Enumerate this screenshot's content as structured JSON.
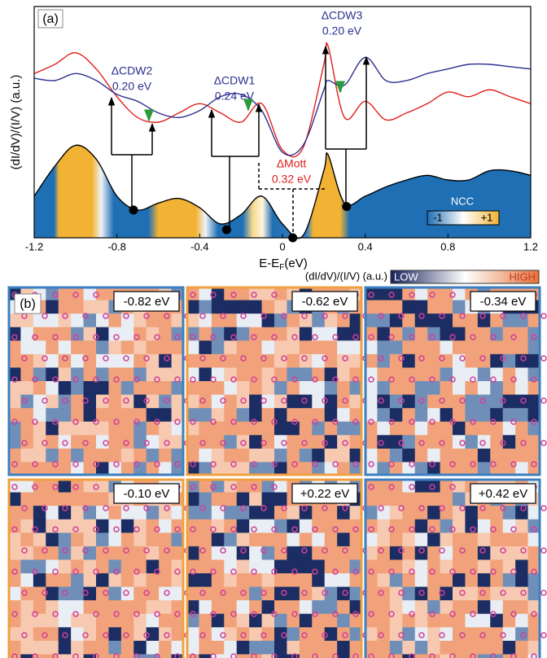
{
  "chart_data": {
    "type": "line",
    "panel_label": "(a)",
    "y_label": "(dI/dV)/(I/V) (a.u.)",
    "x_label": {
      "main": "E-E",
      "sub": "F",
      "unit": "(eV)"
    },
    "x": [
      -1.2,
      -1.1,
      -1.0,
      -0.9,
      -0.8,
      -0.7,
      -0.6,
      -0.5,
      -0.4,
      -0.3,
      -0.2,
      -0.1,
      0,
      0.1,
      0.2,
      0.22,
      0.3,
      0.4,
      0.5,
      0.6,
      0.7,
      0.8,
      0.9,
      1.0,
      1.1,
      1.2
    ],
    "series": [
      {
        "color": "#e0201b",
        "values": [
          7.1,
          7.5,
          8.0,
          7.3,
          6.1,
          5.2,
          5.0,
          5.4,
          5.8,
          5.4,
          5.0,
          5.8,
          3.8,
          3.9,
          7.5,
          8.3,
          5.2,
          5.9,
          5.1,
          5.4,
          5.8,
          6.3,
          6.1,
          6.4,
          6.1,
          5.8
        ]
      },
      {
        "color": "#2b2f8f",
        "values": [
          6.9,
          6.8,
          7.1,
          6.8,
          6.2,
          5.9,
          5.4,
          5.2,
          5.5,
          6.1,
          6.2,
          5.5,
          3.7,
          4.0,
          6.4,
          6.8,
          6.6,
          7.8,
          6.8,
          6.8,
          7.1,
          7.3,
          7.5,
          7.5,
          7.4,
          7.3
        ]
      },
      {
        "color": "#000000",
        "style": "area",
        "values": [
          1.8,
          3.1,
          4.0,
          3.4,
          1.8,
          1.2,
          1.5,
          1.7,
          1.3,
          0.6,
          1.0,
          1.8,
          0.6,
          0.1,
          2.9,
          3.6,
          1.5,
          1.8,
          2.2,
          2.5,
          2.7,
          2.5,
          2.5,
          2.9,
          2.9,
          2.7
        ]
      }
    ],
    "markers": {
      "x": [
        -0.72,
        -0.27,
        0.05,
        0.31
      ],
      "y": [
        1.2,
        0.35,
        0,
        1.35
      ]
    },
    "xlim": [
      -1.2,
      1.2
    ],
    "ylim": [
      0,
      10
    ],
    "xticks": [
      -1.2,
      -0.8,
      -0.4,
      0,
      0.4,
      0.8,
      1.2
    ],
    "annotations": [
      {
        "label": "ΔCDW2",
        "sub": "0.20 eV",
        "color": "#2b2f8f"
      },
      {
        "label": "ΔCDW1",
        "sub": "0.24 eV",
        "color": "#2b2f8f"
      },
      {
        "label": "ΔMott",
        "sub": "0.32 eV",
        "color": "#e0201b"
      },
      {
        "label": "ΔCDW3",
        "sub": "0.20 eV",
        "color": "#2b2f8f"
      }
    ],
    "colorbar": {
      "title": "NCC",
      "low": "-1",
      "high": "+1"
    }
  },
  "panel_b": {
    "panel_label": "(b)",
    "colorbar": {
      "title": "(dI/dV)/(I/V) (a.u.)",
      "low": "LOW",
      "high": "HIGH"
    },
    "tiles": [
      "-0.82 eV",
      "-0.62 eV",
      "-0.34 eV",
      "-0.10 eV",
      "+0.22 eV",
      "+0.42 eV"
    ]
  }
}
